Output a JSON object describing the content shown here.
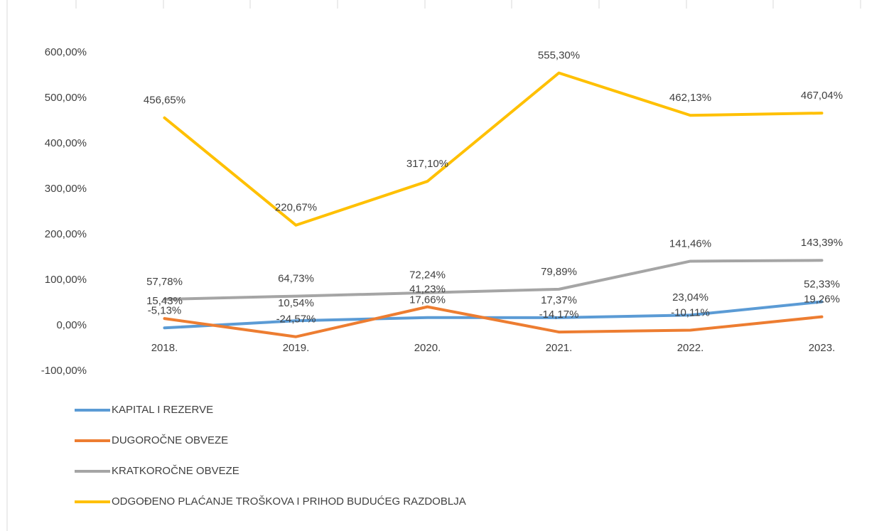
{
  "chart_data": {
    "type": "line",
    "categories": [
      "2018.",
      "2019.",
      "2020.",
      "2021.",
      "2022.",
      "2023."
    ],
    "series": [
      {
        "name": "KAPITAL I REZERVE",
        "color": "#5b9bd5",
        "values": [
          -5.13,
          10.54,
          17.66,
          17.37,
          23.04,
          52.33
        ],
        "value_labels": [
          "-5,13%",
          "10,54%",
          "17,66%",
          "17,37%",
          "23,04%",
          "52,33%"
        ]
      },
      {
        "name": "DUGOROČNE OBVEZE",
        "color": "#ed7d31",
        "values": [
          15.43,
          -24.57,
          41.23,
          -14.17,
          -10.11,
          19.26
        ],
        "value_labels": [
          "15,43%",
          "-24,57%",
          "41,23%",
          "-14,17%",
          "-10,11%",
          "19,26%"
        ]
      },
      {
        "name": "KRATKOROČNE OBVEZE",
        "color": "#a5a5a5",
        "values": [
          57.78,
          64.73,
          72.24,
          79.89,
          141.46,
          143.39
        ],
        "value_labels": [
          "57,78%",
          "64,73%",
          "72,24%",
          "79,89%",
          "141,46%",
          "143,39%"
        ]
      },
      {
        "name": "ODGOĐENO PLAĆANJE TROŠKOVA I PRIHOD BUDUĆEG RAZDOBLJA",
        "color": "#ffc000",
        "values": [
          456.65,
          220.67,
          317.1,
          555.3,
          462.13,
          467.04
        ],
        "value_labels": [
          "456,65%",
          "220,67%",
          "317,10%",
          "555,30%",
          "462,13%",
          "467,04%"
        ]
      }
    ],
    "ylim": [
      -100,
      600
    ],
    "yticks": [
      {
        "value": -100,
        "label": "-100,00%"
      },
      {
        "value": 0,
        "label": "0,00%"
      },
      {
        "value": 100,
        "label": "100,00%"
      },
      {
        "value": 200,
        "label": "200,00%"
      },
      {
        "value": 300,
        "label": "300,00%"
      },
      {
        "value": 400,
        "label": "400,00%"
      },
      {
        "value": 500,
        "label": "500,00%"
      },
      {
        "value": 600,
        "label": "600,00%"
      }
    ],
    "legend": "bottom-left"
  }
}
